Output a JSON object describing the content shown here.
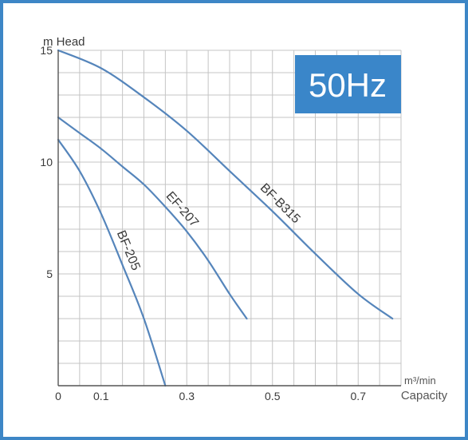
{
  "chart_data": {
    "type": "line",
    "badge": "50Hz",
    "y_axis_label": "m Head",
    "x_axis_unit": "m³/min",
    "x_axis_label": "Capacity",
    "xlim": [
      0,
      0.8
    ],
    "ylim": [
      0,
      15
    ],
    "x_ticks": [
      {
        "value": 0,
        "label": "0"
      },
      {
        "value": 0.1,
        "label": "0.1"
      },
      {
        "value": 0.3,
        "label": "0.3"
      },
      {
        "value": 0.5,
        "label": "0.5"
      },
      {
        "value": 0.7,
        "label": "0.7"
      }
    ],
    "y_ticks": [
      {
        "value": 15,
        "label": "15"
      },
      {
        "value": 10,
        "label": "10"
      },
      {
        "value": 5,
        "label": "5"
      }
    ],
    "x_grid_step": 0.05,
    "y_grid_step": 1,
    "grid": true,
    "series": [
      {
        "name": "BF-B315",
        "x": [
          0,
          0.1,
          0.2,
          0.3,
          0.4,
          0.5,
          0.6,
          0.7,
          0.78
        ],
        "y": [
          15,
          14.2,
          12.9,
          11.4,
          9.6,
          7.8,
          5.9,
          4.1,
          3.0
        ]
      },
      {
        "name": "EF-207",
        "x": [
          0,
          0.05,
          0.1,
          0.15,
          0.2,
          0.25,
          0.3,
          0.35,
          0.4,
          0.44
        ],
        "y": [
          12,
          11.3,
          10.6,
          9.8,
          9.0,
          8.0,
          6.9,
          5.6,
          4.1,
          3.0
        ]
      },
      {
        "name": "BF-205",
        "x": [
          0,
          0.05,
          0.1,
          0.15,
          0.2,
          0.25
        ],
        "y": [
          11,
          9.6,
          7.7,
          5.4,
          3.0,
          0
        ]
      }
    ],
    "label_anchor_x": {
      "BF-B315": 0.5,
      "EF-207": 0.27,
      "BF-205": 0.14
    },
    "colors": {
      "curve": "#5585bb",
      "frame": "#3d86c6",
      "badge_bg": "#3a86c9",
      "badge_text": "#ffffff",
      "grid": "#c4c4c4",
      "axis": "#555555"
    }
  }
}
